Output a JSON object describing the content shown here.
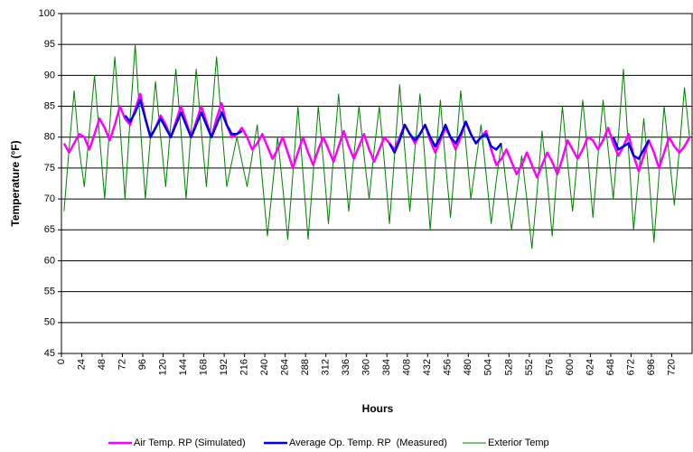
{
  "chart_data": {
    "type": "line",
    "x_label": "Hours",
    "y_label": "Temperature (°F)",
    "x": [
      3,
      9,
      15,
      21,
      27,
      33,
      39,
      45,
      51,
      57,
      63,
      69,
      75,
      81,
      87,
      93,
      99,
      105,
      111,
      117,
      123,
      129,
      135,
      141,
      147,
      153,
      159,
      165,
      171,
      177,
      183,
      189,
      195,
      201,
      207,
      213,
      219,
      225,
      231,
      237,
      243,
      249,
      255,
      261,
      267,
      273,
      279,
      285,
      291,
      297,
      303,
      309,
      315,
      321,
      327,
      333,
      339,
      345,
      351,
      357,
      363,
      369,
      375,
      381,
      387,
      393,
      399,
      405,
      411,
      417,
      423,
      429,
      435,
      441,
      447,
      453,
      459,
      465,
      471,
      477,
      483,
      489,
      495,
      501,
      507,
      513,
      519,
      525,
      531,
      537,
      543,
      549,
      555,
      561,
      567,
      573,
      579,
      585,
      591,
      597,
      603,
      609,
      615,
      621,
      627,
      633,
      639,
      645,
      651,
      657,
      663,
      669,
      675,
      681,
      687,
      693,
      699,
      705,
      711,
      717,
      723,
      729,
      735,
      741
    ],
    "series": [
      {
        "name": "Air Temp. RP (Simulated)",
        "color": "#ff00ff",
        "width": 2.5,
        "values": [
          79,
          77.5,
          79,
          80.5,
          80,
          78,
          80.5,
          83,
          81.5,
          79.5,
          82,
          85,
          83,
          82,
          84.5,
          87,
          83,
          80,
          81.5,
          83.5,
          82,
          80,
          82.5,
          85,
          82.5,
          80,
          82.5,
          85,
          82.5,
          80,
          83,
          85.5,
          82,
          80,
          80.5,
          81.5,
          80,
          78,
          79,
          80.5,
          78.5,
          76.5,
          78,
          80,
          77.5,
          75,
          77.5,
          80,
          77.5,
          75.5,
          78,
          80,
          78,
          76,
          78.5,
          81,
          78.5,
          76.5,
          78.5,
          80.5,
          78,
          76,
          78,
          80,
          79,
          78,
          80,
          82,
          80.5,
          79,
          80.5,
          82,
          79.5,
          77.5,
          79.5,
          81.5,
          80,
          78,
          80,
          82.5,
          80.5,
          79,
          80,
          81,
          78,
          75.5,
          76.5,
          78,
          76,
          74,
          75.5,
          77.5,
          75.5,
          73.5,
          75.5,
          77.5,
          76,
          74,
          76.5,
          79.5,
          78,
          76.5,
          78,
          80,
          79.5,
          78,
          79.5,
          81.5,
          79,
          77,
          78.5,
          80.5,
          77,
          74.5,
          77,
          79.5,
          77.5,
          75,
          77.5,
          80,
          78.5,
          77.5,
          78.5,
          80
        ]
      },
      {
        "name": "Average Op. Temp. RP  (Measured)",
        "color": "#0000e0",
        "width": 2.5,
        "values": [
          null,
          null,
          null,
          null,
          null,
          null,
          null,
          null,
          null,
          null,
          null,
          null,
          83.5,
          82.5,
          84,
          86,
          83,
          80,
          81.5,
          83,
          81.5,
          80,
          82,
          84,
          82,
          80,
          82,
          84,
          82,
          80,
          82,
          84,
          82,
          80.5,
          80.5,
          81,
          null,
          null,
          null,
          null,
          null,
          null,
          null,
          null,
          null,
          null,
          null,
          null,
          null,
          null,
          null,
          null,
          null,
          null,
          null,
          null,
          null,
          null,
          null,
          null,
          null,
          null,
          null,
          null,
          79,
          77.5,
          79.5,
          82,
          80.5,
          79.5,
          80.5,
          82,
          80,
          78.5,
          80,
          82,
          80,
          79,
          80.5,
          82.5,
          80.5,
          79,
          80,
          80.5,
          78.5,
          78,
          79,
          null,
          null,
          null,
          null,
          null,
          null,
          null,
          null,
          null,
          null,
          null,
          null,
          null,
          null,
          null,
          null,
          null,
          null,
          null,
          null,
          null,
          80,
          78,
          78.5,
          79,
          77,
          76.5,
          78,
          79.5,
          null,
          null,
          null,
          null,
          null,
          null,
          null,
          null
        ]
      },
      {
        "name": "Exterior Temp",
        "color": "#008000",
        "width": 1,
        "values": [
          68,
          78,
          87.5,
          78,
          72,
          81,
          90,
          80,
          70,
          82,
          93,
          82,
          70,
          83,
          95,
          82,
          70,
          80,
          89,
          80,
          72,
          82,
          91,
          81,
          70,
          81,
          91,
          81,
          72,
          83,
          93,
          82,
          72,
          76,
          80,
          76,
          72,
          77,
          82,
          73,
          64,
          72,
          80,
          72,
          63.5,
          74,
          85,
          74,
          63.5,
          74,
          85,
          76,
          66,
          77,
          87,
          77,
          68,
          77,
          85,
          77,
          70,
          78,
          85,
          76,
          66,
          77,
          88.5,
          78,
          68,
          78,
          87,
          76,
          65,
          76,
          86,
          76,
          67,
          77,
          87.5,
          79,
          70,
          76,
          82,
          74,
          66,
          73,
          79,
          72,
          65,
          71,
          77,
          70,
          62,
          71,
          81,
          73,
          64,
          75,
          85,
          76,
          68,
          77,
          86,
          77,
          67,
          77,
          86,
          78,
          70,
          80,
          91,
          78,
          65,
          74,
          83,
          74,
          63,
          74,
          85,
          77,
          69,
          78,
          88,
          80
        ]
      }
    ],
    "xlim": [
      0,
      744
    ],
    "ylim": [
      45,
      100
    ],
    "xticks": [
      0,
      24,
      48,
      72,
      96,
      120,
      144,
      168,
      192,
      216,
      240,
      264,
      288,
      312,
      336,
      360,
      384,
      408,
      432,
      456,
      480,
      504,
      528,
      552,
      576,
      600,
      624,
      648,
      672,
      696,
      720
    ],
    "yticks": [
      45,
      50,
      55,
      60,
      65,
      70,
      75,
      80,
      85,
      90,
      95,
      100
    ],
    "grid": true,
    "legend": "bottom"
  }
}
